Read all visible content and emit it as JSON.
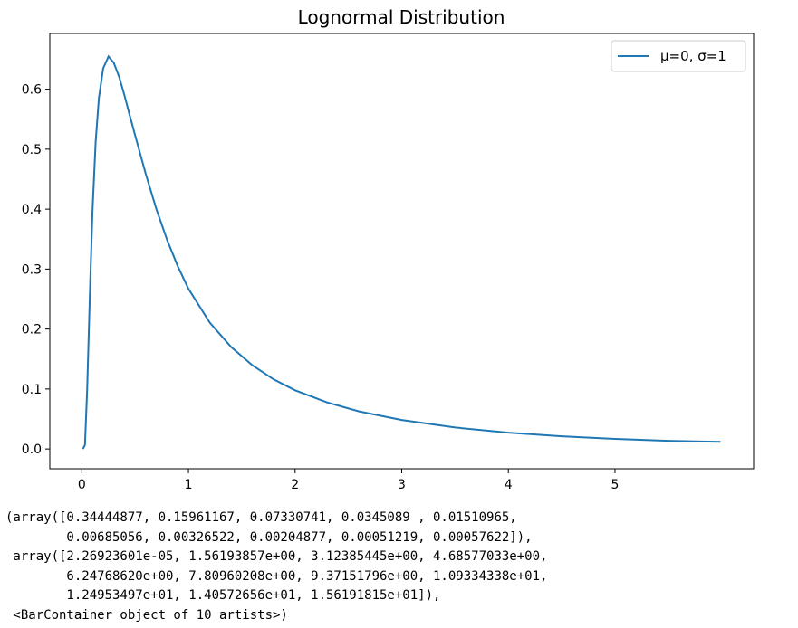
{
  "chart_data": {
    "type": "line",
    "title": "Lognormal Distribution",
    "xlabel": "",
    "ylabel": "",
    "xlim": [
      -0.3,
      6.3
    ],
    "ylim": [
      -0.033,
      0.693
    ],
    "xticks": [
      0,
      1,
      2,
      3,
      4,
      5
    ],
    "yticks": [
      0.0,
      0.1,
      0.2,
      0.3,
      0.4,
      0.5,
      0.6
    ],
    "grid": false,
    "legend_position": "top-right",
    "series": [
      {
        "name": "μ=0, σ=1",
        "color": "#1f77b4",
        "x": [
          0.01,
          0.03,
          0.05,
          0.08,
          0.1,
          0.13,
          0.16,
          0.2,
          0.25,
          0.3,
          0.35,
          0.4,
          0.45,
          0.5,
          0.6,
          0.7,
          0.8,
          0.9,
          1.0,
          1.2,
          1.4,
          1.6,
          1.8,
          2.0,
          2.3,
          2.6,
          3.0,
          3.5,
          4.0,
          4.5,
          5.0,
          5.5,
          5.99
        ],
        "y": [
          0.0,
          0.0066,
          0.0973,
          0.2825,
          0.3961,
          0.5122,
          0.5857,
          0.6348,
          0.6546,
          0.644,
          0.6209,
          0.5898,
          0.556,
          0.5231,
          0.4583,
          0.3998,
          0.3485,
          0.3046,
          0.2674,
          0.2108,
          0.1702,
          0.1395,
          0.116,
          0.0978,
          0.0776,
          0.0627,
          0.0484,
          0.0358,
          0.0272,
          0.0212,
          0.0168,
          0.0136,
          0.0118
        ]
      }
    ]
  },
  "output_lines": [
    "(array([0.34444877, 0.15961167, 0.07330741, 0.0345089 , 0.01510965,",
    "        0.00685056, 0.00326522, 0.00204877, 0.00051219, 0.00057622]),",
    " array([2.26923601e-05, 1.56193857e+00, 3.12385445e+00, 4.68577033e+00,",
    "        6.24768620e+00, 7.80960208e+00, 9.37151796e+00, 1.09334338e+01,",
    "        1.24953497e+01, 1.40572656e+01, 1.56191815e+01]),",
    " <BarContainer object of 10 artists>)"
  ]
}
